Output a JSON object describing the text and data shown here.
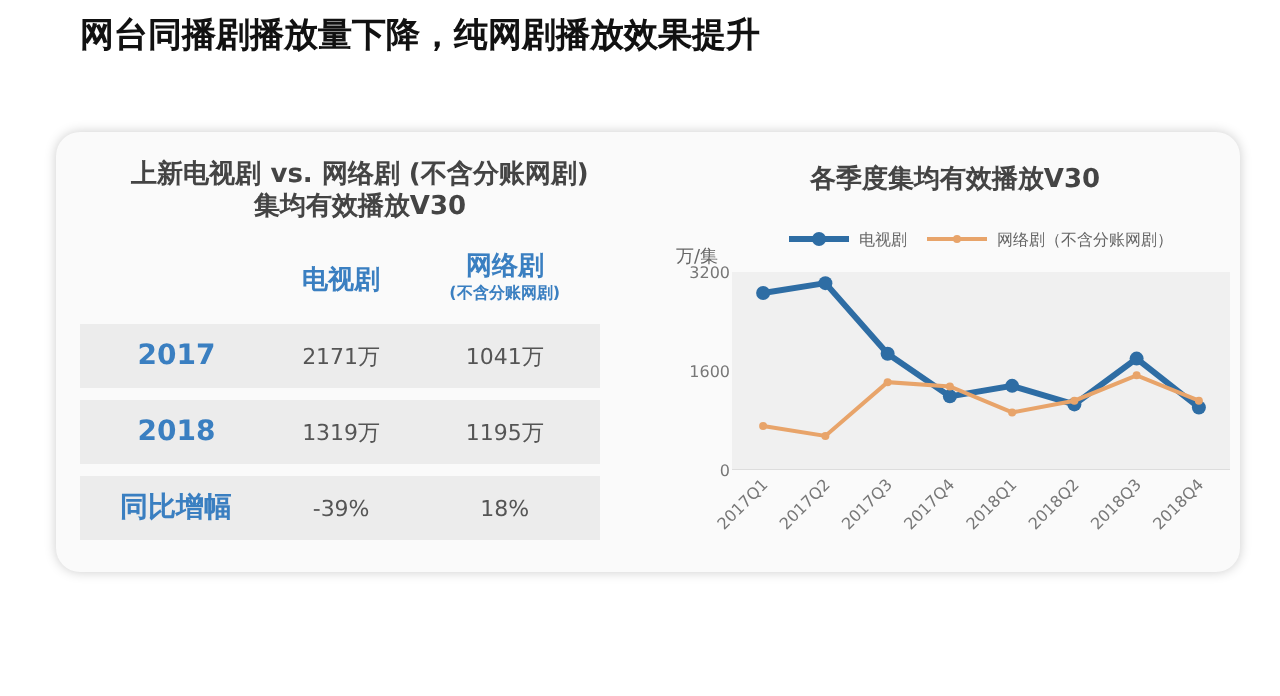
{
  "chart_data": [
    {
      "type": "other",
      "title": "网台同播剧播放量下降，纯网剧播放效果提升",
      "subtitle": "上新电视剧 vs. 网络剧 (不含分账网剧)\n集均有效播放V30",
      "annotations": [
        "电视剧",
        "网络剧\n(不含分账网剧)",
        "2017",
        "2171万",
        "1041万",
        "2018",
        "1319万",
        "1195万",
        "同比增幅",
        "-39%",
        "18%"
      ]
    },
    {
      "type": "line",
      "title": "各季度集均有效播放V30",
      "ylabel": "万/集",
      "categories": [
        "2017Q1",
        "2017Q2",
        "2017Q3",
        "2017Q4",
        "2018Q1",
        "2018Q2",
        "2018Q3",
        "2018Q4"
      ],
      "series": [
        {
          "name": "电视剧",
          "color": "#2e6da4",
          "values": [
            2860,
            3020,
            1880,
            1190,
            1360,
            1060,
            1800,
            1010
          ]
        },
        {
          "name": "网络剧（不含分账网剧）",
          "color": "#e8a46a",
          "values": [
            710,
            550,
            1420,
            1350,
            930,
            1120,
            1530,
            1120
          ]
        }
      ],
      "ylim": [
        0,
        3200
      ],
      "yticks": [
        0,
        1600,
        3200
      ],
      "grid": false,
      "legend": "top",
      "marker": "circle",
      "line_style": "solid"
    }
  ]
}
